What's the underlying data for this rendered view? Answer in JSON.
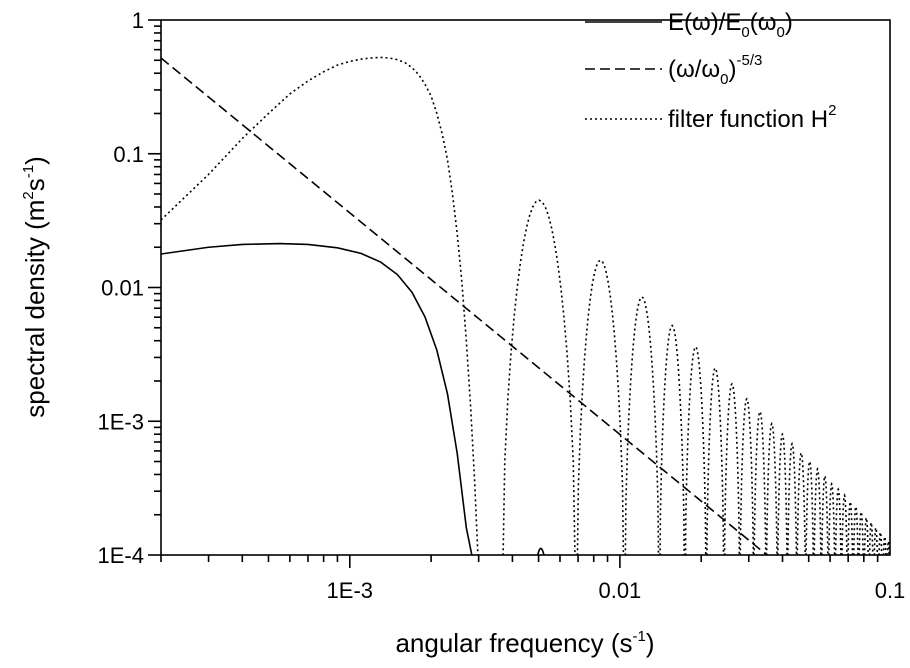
{
  "chart_data": {
    "type": "line",
    "xlabel": {
      "base": "angular frequency (s",
      "sup": "-1",
      "end": ")"
    },
    "ylabel": {
      "base": "spectral density (m",
      "sup1": "2",
      "mid": "s",
      "sup2": "-1",
      "end": ")"
    },
    "xscale": "log",
    "yscale": "log",
    "xlim": [
      0.0002,
      0.1
    ],
    "ylim": [
      0.0001,
      1
    ],
    "x_ticks": [
      {
        "value": 0.001,
        "label": "1E-3"
      },
      {
        "value": 0.01,
        "label": "0.01"
      },
      {
        "value": 0.1,
        "label": "0.1"
      }
    ],
    "y_ticks": [
      {
        "value": 0.0001,
        "label": "1E-4"
      },
      {
        "value": 0.001,
        "label": "1E-3"
      },
      {
        "value": 0.01,
        "label": "0.01"
      },
      {
        "value": 0.1,
        "label": "0.1"
      },
      {
        "value": 1,
        "label": "1"
      }
    ],
    "grid": false,
    "legend_position": "top-right",
    "series": [
      {
        "name": "E(ω)/E0(ω0)",
        "legend": {
          "p1": "E(ω)/E",
          "s1": "0",
          "p2": "(ω",
          "s2": "0",
          "p3": ")"
        },
        "style": "solid",
        "points": [
          [
            0.0002,
            0.0178
          ],
          [
            0.0003,
            0.02
          ],
          [
            0.0004,
            0.021
          ],
          [
            0.00055,
            0.0213
          ],
          [
            0.0007,
            0.021
          ],
          [
            0.0009,
            0.0198
          ],
          [
            0.0011,
            0.018
          ],
          [
            0.0013,
            0.0155
          ],
          [
            0.0015,
            0.0125
          ],
          [
            0.0017,
            0.0092
          ],
          [
            0.0019,
            0.006
          ],
          [
            0.0021,
            0.0034
          ],
          [
            0.0023,
            0.0016
          ],
          [
            0.0025,
            0.00057
          ],
          [
            0.0027,
            0.00016
          ],
          [
            0.00283,
            0.0001
          ]
        ],
        "bump": {
          "center": 0.0051,
          "peak": 0.000112,
          "start": 0.0049,
          "end": 0.0053
        }
      },
      {
        "name": "(ω/ω0)^-5/3",
        "legend": {
          "p1": "(ω/ω",
          "s1": "0",
          "p2": ")",
          "sup": "-5/3"
        },
        "style": "dashed",
        "points": [
          [
            0.0002,
            0.52
          ],
          [
            0.035,
            0.0001
          ]
        ]
      },
      {
        "name": "filter function H^2",
        "legend": {
          "p1": "filter function H",
          "sup": "2"
        },
        "style": "dotted",
        "main_lobe": [
          [
            0.0002,
            0.032
          ],
          [
            0.0003,
            0.07
          ],
          [
            0.0004,
            0.13
          ],
          [
            0.0005,
            0.2
          ],
          [
            0.0006,
            0.28
          ],
          [
            0.0007,
            0.35
          ],
          [
            0.0008,
            0.41
          ],
          [
            0.0009,
            0.46
          ],
          [
            0.001,
            0.49
          ],
          [
            0.0011,
            0.51
          ],
          [
            0.0012,
            0.52
          ],
          [
            0.0013,
            0.525
          ],
          [
            0.0014,
            0.52
          ],
          [
            0.0015,
            0.505
          ],
          [
            0.0016,
            0.48
          ],
          [
            0.0017,
            0.44
          ],
          [
            0.0018,
            0.39
          ],
          [
            0.0019,
            0.33
          ],
          [
            0.002,
            0.27
          ],
          [
            0.0021,
            0.2
          ],
          [
            0.0022,
            0.14
          ],
          [
            0.0023,
            0.09
          ],
          [
            0.0024,
            0.05
          ],
          [
            0.0025,
            0.025
          ],
          [
            0.0026,
            0.011
          ],
          [
            0.0027,
            0.004
          ],
          [
            0.0028,
            0.0013
          ],
          [
            0.0029,
            0.00035
          ],
          [
            0.00298,
            0.0001
          ]
        ],
        "lobes": [
          {
            "start": 0.00365,
            "peak_x": 0.0052,
            "peak": 0.045,
            "end": 0.0069
          },
          {
            "start": 0.0069,
            "peak_x": 0.0087,
            "peak": 0.016,
            "end": 0.0104
          },
          {
            "start": 0.0104,
            "peak_x": 0.0122,
            "peak": 0.0085,
            "end": 0.014
          },
          {
            "start": 0.014,
            "peak_x": 0.0157,
            "peak": 0.0052,
            "end": 0.0174
          },
          {
            "start": 0.0174,
            "peak_x": 0.0191,
            "peak": 0.0036,
            "end": 0.0209
          },
          {
            "start": 0.0209,
            "peak_x": 0.0226,
            "peak": 0.0025,
            "end": 0.0243
          },
          {
            "start": 0.0243,
            "peak_x": 0.0261,
            "peak": 0.0019,
            "end": 0.0278
          },
          {
            "start": 0.0278,
            "peak_x": 0.0296,
            "peak": 0.00147,
            "end": 0.0313
          },
          {
            "start": 0.0313,
            "peak_x": 0.033,
            "peak": 0.00118,
            "end": 0.0348
          },
          {
            "start": 0.0348,
            "peak_x": 0.0365,
            "peak": 0.00096,
            "end": 0.0383
          },
          {
            "start": 0.0383,
            "peak_x": 0.04,
            "peak": 0.0008,
            "end": 0.0417
          },
          {
            "start": 0.0417,
            "peak_x": 0.0435,
            "peak": 0.00068,
            "end": 0.0452
          },
          {
            "start": 0.0452,
            "peak_x": 0.0469,
            "peak": 0.00058,
            "end": 0.0487
          },
          {
            "start": 0.0487,
            "peak_x": 0.0504,
            "peak": 0.0005,
            "end": 0.0522
          },
          {
            "start": 0.0522,
            "peak_x": 0.0539,
            "peak": 0.00044,
            "end": 0.0557
          },
          {
            "start": 0.0557,
            "peak_x": 0.0574,
            "peak": 0.00039,
            "end": 0.0591
          },
          {
            "start": 0.0591,
            "peak_x": 0.0609,
            "peak": 0.00034,
            "end": 0.0626
          },
          {
            "start": 0.0626,
            "peak_x": 0.0643,
            "peak": 0.00031,
            "end": 0.0661
          },
          {
            "start": 0.0661,
            "peak_x": 0.0678,
            "peak": 0.00028,
            "end": 0.0696
          },
          {
            "start": 0.0696,
            "peak_x": 0.0713,
            "peak": 0.00025,
            "end": 0.073
          },
          {
            "start": 0.073,
            "peak_x": 0.0748,
            "peak": 0.00023,
            "end": 0.0765
          },
          {
            "start": 0.0765,
            "peak_x": 0.0782,
            "peak": 0.00021,
            "end": 0.08
          },
          {
            "start": 0.08,
            "peak_x": 0.0817,
            "peak": 0.00019,
            "end": 0.0835
          },
          {
            "start": 0.0835,
            "peak_x": 0.0852,
            "peak": 0.000175,
            "end": 0.0869
          },
          {
            "start": 0.0869,
            "peak_x": 0.0887,
            "peak": 0.00016,
            "end": 0.0904
          },
          {
            "start": 0.0904,
            "peak_x": 0.0921,
            "peak": 0.000148,
            "end": 0.0939
          },
          {
            "start": 0.0939,
            "peak_x": 0.0956,
            "peak": 0.000137,
            "end": 0.0973
          },
          {
            "start": 0.0973,
            "peak_x": 0.099,
            "peak": 0.000127,
            "end": 0.1
          }
        ]
      }
    ]
  }
}
